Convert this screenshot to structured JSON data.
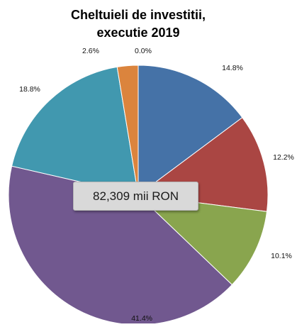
{
  "chart_data": {
    "type": "pie",
    "title_lines": [
      "Cheltuieli de investitii,",
      "executie 2019"
    ],
    "center_label": "82,309 mii RON",
    "slices": [
      {
        "label": "14.8%",
        "value": 14.8,
        "color": "#4572a7"
      },
      {
        "label": "12.2%",
        "value": 12.2,
        "color": "#aa4643"
      },
      {
        "label": "10.1%",
        "value": 10.1,
        "color": "#89a54e"
      },
      {
        "label": "41.4%",
        "value": 41.4,
        "color": "#71588f"
      },
      {
        "label": "18.8%",
        "value": 18.8,
        "color": "#4198af"
      },
      {
        "label": "2.6%",
        "value": 2.6,
        "color": "#db843d"
      },
      {
        "label": "0.0%",
        "value": 0.0,
        "color": "#93a9cf"
      }
    ]
  }
}
